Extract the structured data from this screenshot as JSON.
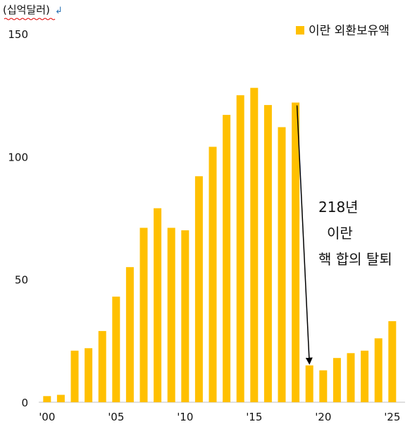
{
  "chart_data": {
    "type": "bar",
    "unit_label": "(십억달러)",
    "legend": {
      "label": "이란 외환보유액",
      "position": "top-right"
    },
    "colors": {
      "bar": "#FFC000",
      "arrow": "#000000",
      "unit_mark": "#2E75B6",
      "squiggle": "#E00000"
    },
    "grid": false,
    "categories": [
      "2000",
      "2001",
      "2002",
      "2003",
      "2004",
      "2005",
      "2006",
      "2007",
      "2008",
      "2009",
      "2010",
      "2011",
      "2012",
      "2013",
      "2014",
      "2015",
      "2016",
      "2017",
      "2018",
      "2019",
      "2020",
      "2021",
      "2022",
      "2023",
      "2024",
      "2025"
    ],
    "values": [
      2.5,
      3,
      21,
      22,
      29,
      43,
      55,
      71,
      79,
      71,
      70,
      92,
      104,
      117,
      125,
      128,
      121,
      112,
      122,
      15,
      13,
      18,
      20,
      21,
      26,
      33
    ],
    "x_tick_labels": [
      {
        "index": 0,
        "label": "'00"
      },
      {
        "index": 5,
        "label": "'05"
      },
      {
        "index": 10,
        "label": "'10"
      },
      {
        "index": 15,
        "label": "'15"
      },
      {
        "index": 20,
        "label": "'20"
      },
      {
        "index": 25,
        "label": "'25"
      }
    ],
    "y_ticks": [
      0,
      50,
      100,
      150
    ],
    "ylim": [
      0,
      150
    ],
    "annotation": {
      "lines": [
        "218년",
        "이란",
        "핵 합의 탈퇴"
      ],
      "arrow_from_index": 18,
      "arrow_to_index": 19
    }
  }
}
